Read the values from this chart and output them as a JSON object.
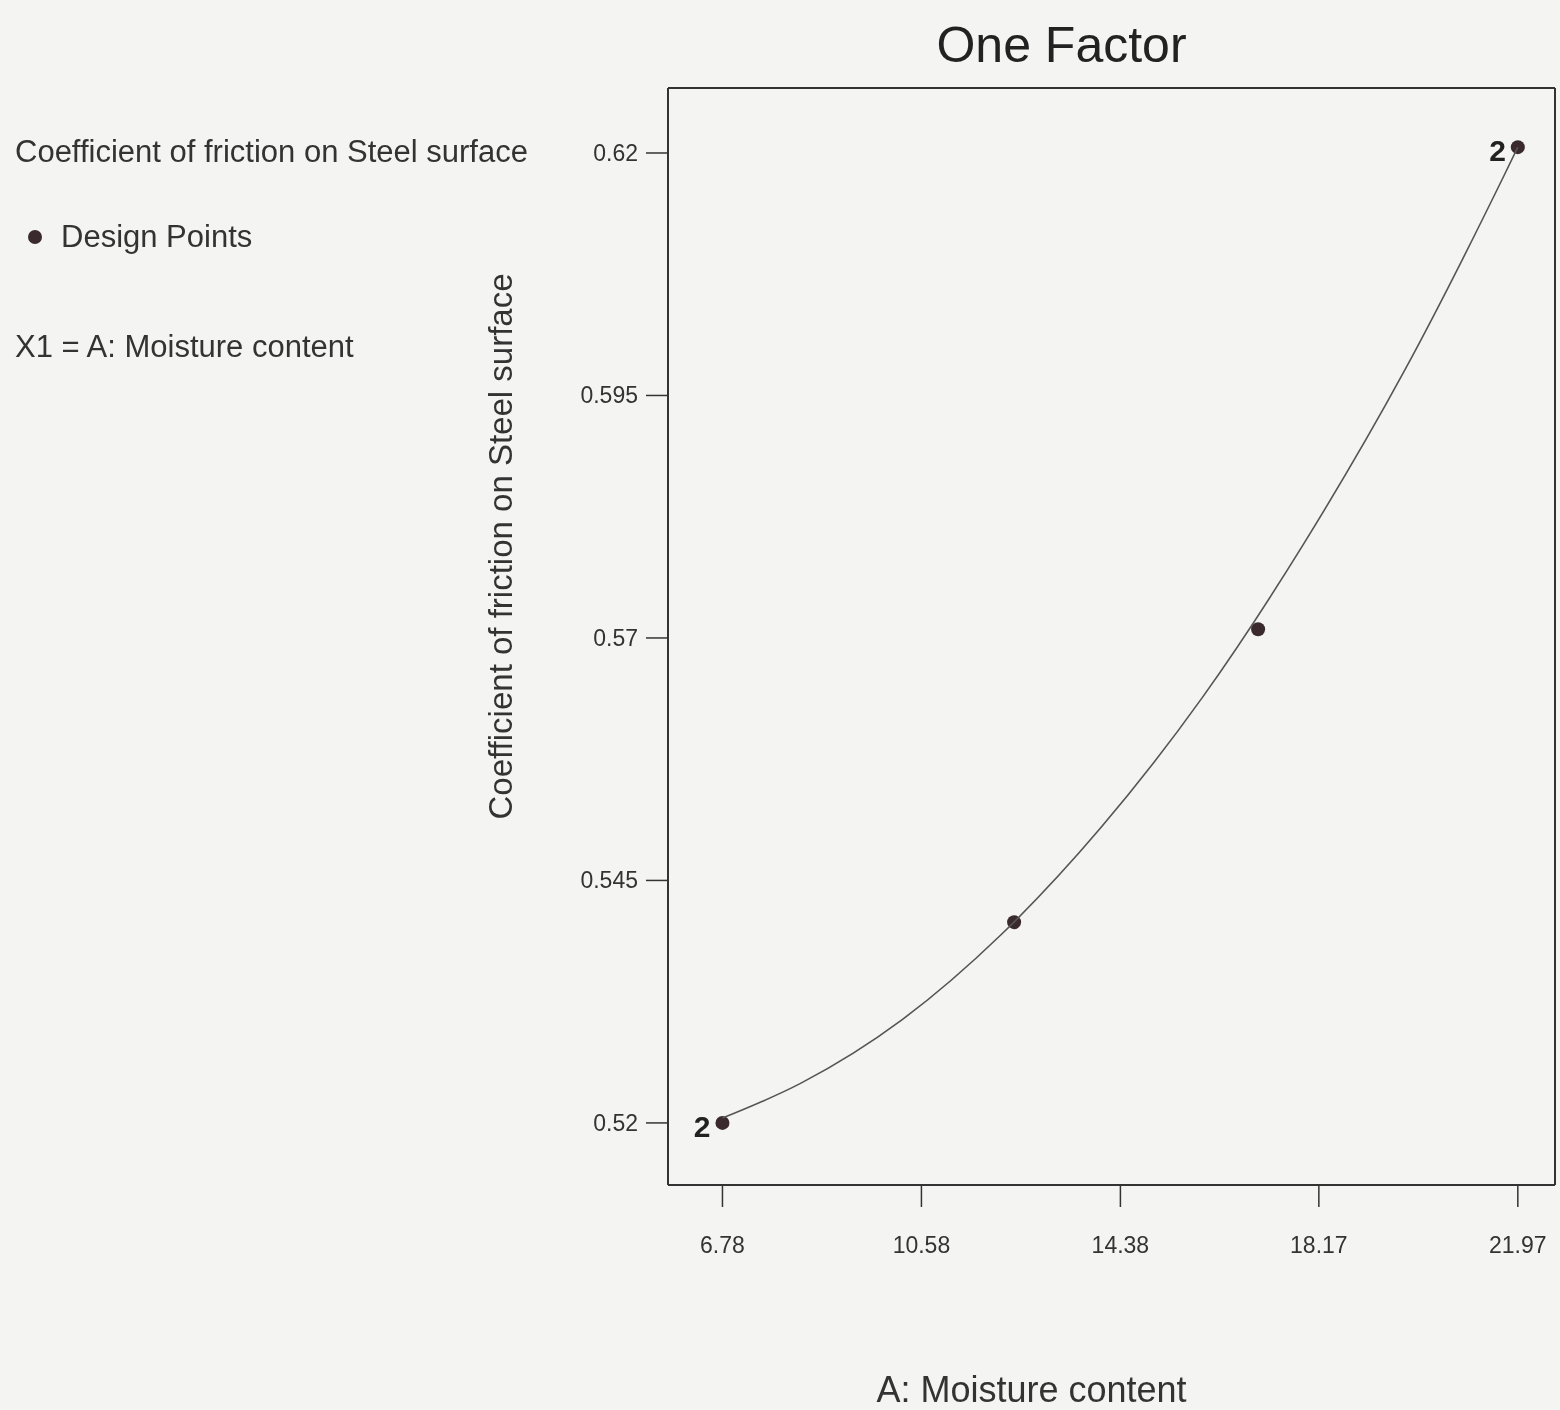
{
  "chart_data": {
    "type": "scatter",
    "title": "One Factor",
    "subtitle": "Coefficient of friction on Steel surface",
    "xlabel": "A: Moisture content",
    "ylabel": "Coefficient of friction on Steel surface",
    "xlim": [
      5.74,
      22.68
    ],
    "ylim": [
      0.5136,
      0.6267
    ],
    "xticks": [
      6.78,
      10.58,
      14.38,
      18.17,
      21.97
    ],
    "yticks": [
      0.52,
      0.545,
      0.57,
      0.595,
      0.62
    ],
    "grid": false,
    "legend": "left",
    "marker": "circle",
    "series": [
      {
        "name": "Design Points",
        "type": "scatter",
        "color": "#3a2a2e",
        "x": [
          6.78,
          12.35,
          17.01,
          21.97
        ],
        "values": [
          0.52,
          0.5407,
          0.5709,
          0.6206
        ]
      },
      {
        "type": "line",
        "color": "#555555",
        "line_style": "solid",
        "marker": "none",
        "x": [
          6.78,
          8.28,
          10.2,
          12.1,
          14.0,
          15.95,
          17.88,
          19.8,
          21.7,
          21.97
        ],
        "values": [
          0.5205,
          0.5241,
          0.5306,
          0.5394,
          0.5504,
          0.5639,
          0.5797,
          0.5975,
          0.6176,
          0.6206
        ]
      }
    ],
    "annotations": [
      {
        "text": "2",
        "x": 6.78,
        "y": 0.52
      },
      {
        "text": "2",
        "x": 21.97,
        "y": 0.6206
      },
      "X1 = A: Moisture content"
    ]
  }
}
